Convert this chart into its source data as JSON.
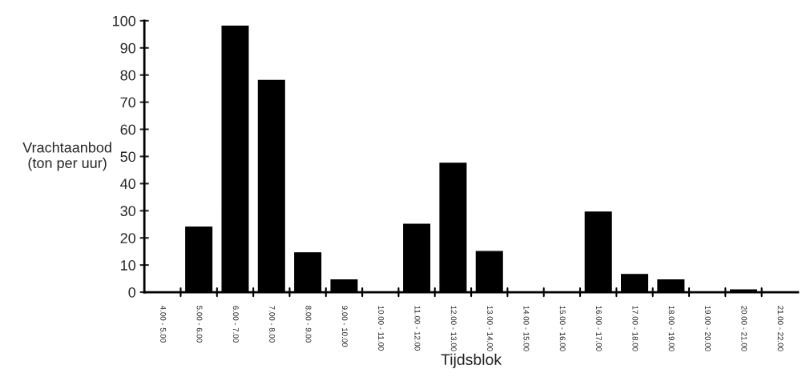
{
  "chart_data": {
    "type": "bar",
    "xlabel": "Tijdsblok",
    "ylabel": "Vrachtaanbod\n(ton per uur)",
    "categories": [
      "4.00 - 5.00",
      "5.00 - 6.00",
      "6.00 - 7.00",
      "7.00 - 8.00",
      "8.00 - 9.00",
      "9.00 - 10.00",
      "10.00 - 11.00",
      "11.00 - 12.00",
      "12.00 - 13.00",
      "13.00 - 14.00",
      "14.00 - 15.00",
      "15.00 - 16.00",
      "16.00 - 17.00",
      "17.00 - 18.00",
      "18.00 - 19.00",
      "19.00 - 20.00",
      "20.00 - 21.00",
      "21.00 - 22.00"
    ],
    "values": [
      0,
      24,
      98,
      78,
      14.5,
      4.5,
      0,
      25,
      47.5,
      15,
      0,
      0,
      29.5,
      6.5,
      4.5,
      0,
      0.8,
      0
    ],
    "color": "#000000",
    "ylim": [
      0,
      100
    ],
    "yticks": [
      0,
      10,
      20,
      30,
      40,
      50,
      60,
      70,
      80,
      90,
      100
    ],
    "grid": false,
    "legend": false
  }
}
